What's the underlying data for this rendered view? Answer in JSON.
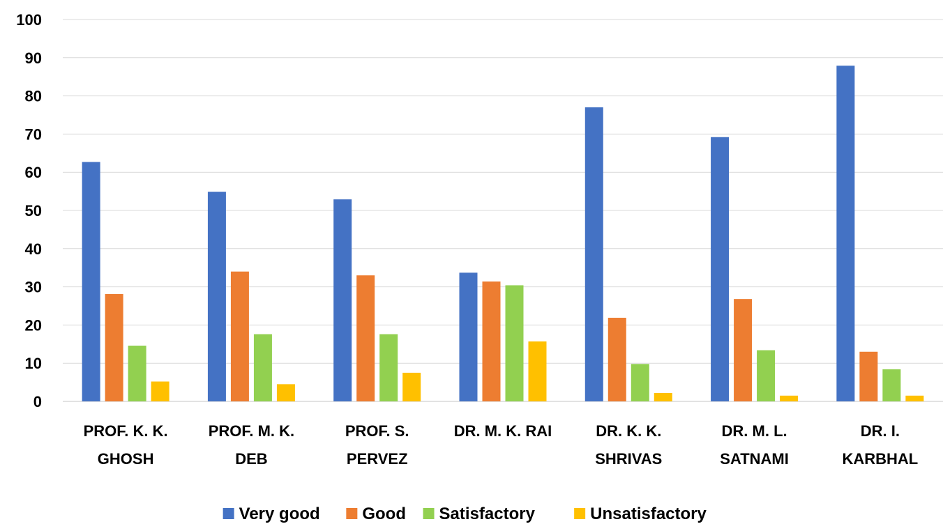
{
  "chart_data": {
    "type": "bar",
    "categories": [
      [
        "PROF. K. K.",
        "GHOSH"
      ],
      [
        "PROF. M. K.",
        "DEB"
      ],
      [
        "PROF. S.",
        "PERVEZ"
      ],
      [
        "DR. M. K. RAI"
      ],
      [
        "DR. K. K.",
        "SHRIVAS"
      ],
      [
        "DR. M. L.",
        "SATNAMI"
      ],
      [
        "DR. I.",
        "KARBHAL"
      ]
    ],
    "series": [
      {
        "name": "Very good",
        "color": "#4472C4",
        "values": [
          62.7,
          54.9,
          52.9,
          33.7,
          77.0,
          69.2,
          87.9
        ]
      },
      {
        "name": "Good",
        "color": "#ED7D31",
        "values": [
          28.1,
          34.0,
          33.0,
          31.4,
          21.9,
          26.8,
          13.0
        ]
      },
      {
        "name": "Satisfactory",
        "color": "#92D050",
        "values": [
          14.6,
          17.6,
          17.6,
          30.4,
          9.8,
          13.4,
          8.4
        ]
      },
      {
        "name": "Unsatisfactory",
        "color": "#FFC000",
        "values": [
          5.2,
          4.5,
          7.5,
          15.7,
          2.2,
          1.5,
          1.5
        ]
      }
    ],
    "yticks": [
      "0",
      "10",
      "20",
      "30",
      "40",
      "50",
      "60",
      "70",
      "80",
      "90",
      "100"
    ],
    "ylim": [
      0,
      100
    ],
    "grid": true,
    "legend_position": "bottom",
    "title": "",
    "xlabel": "",
    "ylabel": ""
  }
}
